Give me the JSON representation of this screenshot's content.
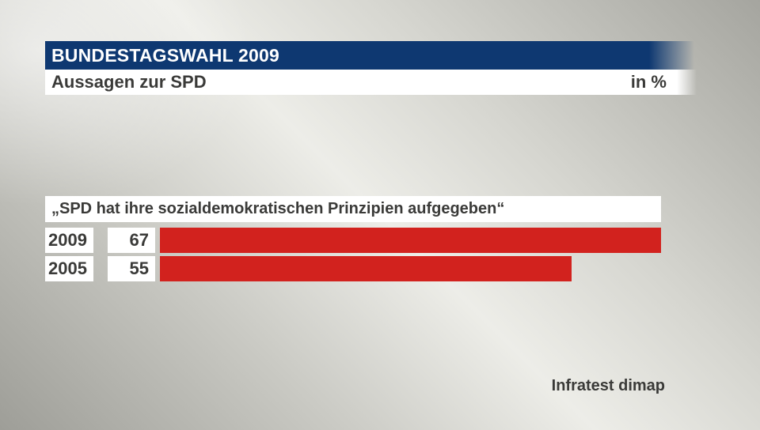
{
  "header": {
    "title": "BUNDESTAGSWAHL 2009",
    "subtitle": "Aussagen zur SPD",
    "unit_label": "in %"
  },
  "chart_data": {
    "type": "bar",
    "orientation": "horizontal",
    "title": "„SPD hat ihre sozialdemokratischen Prinzipien aufgegeben“",
    "categories": [
      "2009",
      "2005"
    ],
    "values": [
      67,
      55
    ],
    "unit": "%",
    "xlim": [
      0,
      67
    ],
    "legend": "none",
    "grid": false
  },
  "footer": {
    "source": "Infratest dimap"
  },
  "colors": {
    "navy": "#0e3871",
    "bar_red": "#d2221e",
    "band_white": "#ffffff",
    "text_dark": "#3a3a38"
  }
}
